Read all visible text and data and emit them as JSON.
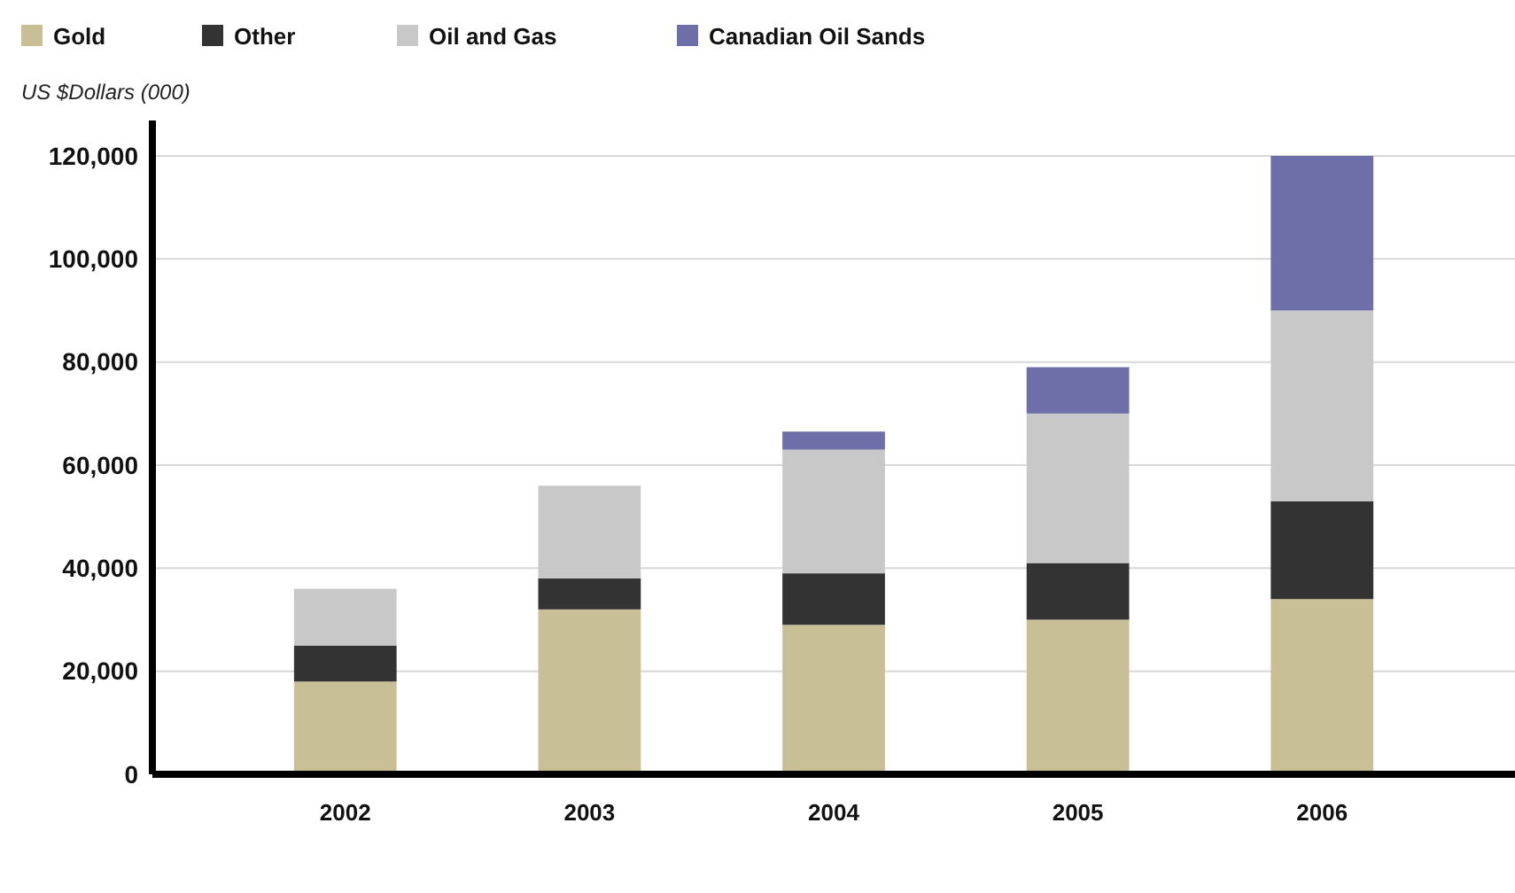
{
  "chart_data": {
    "type": "bar",
    "stacked": true,
    "ylabel": "US $Dollars (000)",
    "categories": [
      "2002",
      "2003",
      "2004",
      "2005",
      "2006"
    ],
    "series": [
      {
        "name": "Gold",
        "color": "#c9bf97",
        "values": [
          18000,
          32000,
          29000,
          30000,
          34000
        ]
      },
      {
        "name": "Other",
        "color": "#333333",
        "values": [
          7000,
          6000,
          10000,
          11000,
          19000
        ]
      },
      {
        "name": "Oil and Gas",
        "color": "#c8c8c8",
        "values": [
          11000,
          18000,
          24000,
          29000,
          37000
        ]
      },
      {
        "name": "Canadian Oil Sands",
        "color": "#6e6ea8",
        "values": [
          null,
          null,
          3500,
          9000,
          30000
        ]
      }
    ],
    "ylim": [
      0,
      120000
    ],
    "yticks": [
      {
        "value": 0,
        "label": "0"
      },
      {
        "value": 20000,
        "label": "20,000"
      },
      {
        "value": 40000,
        "label": "40,000"
      },
      {
        "value": 60000,
        "label": "60,000"
      },
      {
        "value": 80000,
        "label": "80,000"
      },
      {
        "value": 100000,
        "label": "100,000"
      },
      {
        "value": 120000,
        "label": "120,000"
      }
    ],
    "grid": "y",
    "legend": "top left"
  }
}
